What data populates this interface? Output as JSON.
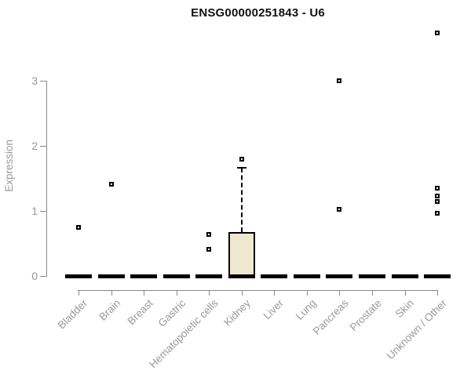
{
  "chart_data": {
    "type": "boxplot",
    "title": "ENSG00000251843 - U6",
    "ylabel": "Expression",
    "xlabel": "",
    "yticks": [
      0,
      1,
      2,
      3
    ],
    "ylim": [
      0,
      3.9
    ],
    "grid": false,
    "legend": null,
    "categories": [
      "Bladder",
      "Brain",
      "Breast",
      "Gastric",
      "Hematopoietic cells",
      "Kidney",
      "Liver",
      "Lung",
      "Pancreas",
      "Prostate",
      "Skin",
      "Unknown / Other"
    ],
    "series": [
      {
        "category": "Bladder",
        "whisker_low": 0,
        "q1": 0,
        "median": 0,
        "q3": 0,
        "whisker_high": 0,
        "outliers": [
          0.75
        ]
      },
      {
        "category": "Brain",
        "whisker_low": 0,
        "q1": 0,
        "median": 0,
        "q3": 0,
        "whisker_high": 0,
        "outliers": [
          1.41
        ]
      },
      {
        "category": "Breast",
        "whisker_low": 0,
        "q1": 0,
        "median": 0,
        "q3": 0,
        "whisker_high": 0,
        "outliers": []
      },
      {
        "category": "Gastric",
        "whisker_low": 0,
        "q1": 0,
        "median": 0,
        "q3": 0,
        "whisker_high": 0,
        "outliers": []
      },
      {
        "category": "Hematopoietic cells",
        "whisker_low": 0,
        "q1": 0,
        "median": 0,
        "q3": 0,
        "whisker_high": 0,
        "outliers": [
          0.64,
          0.41
        ]
      },
      {
        "category": "Kidney",
        "whisker_low": 0,
        "q1": 0,
        "median": 0,
        "q3": 0.67,
        "whisker_high": 1.66,
        "outliers": [
          1.8
        ]
      },
      {
        "category": "Liver",
        "whisker_low": 0,
        "q1": 0,
        "median": 0,
        "q3": 0,
        "whisker_high": 0,
        "outliers": []
      },
      {
        "category": "Lung",
        "whisker_low": 0,
        "q1": 0,
        "median": 0,
        "q3": 0,
        "whisker_high": 0,
        "outliers": []
      },
      {
        "category": "Pancreas",
        "whisker_low": 0,
        "q1": 0,
        "median": 0,
        "q3": 0,
        "whisker_high": 0,
        "outliers": [
          3.0,
          1.02
        ]
      },
      {
        "category": "Prostate",
        "whisker_low": 0,
        "q1": 0,
        "median": 0,
        "q3": 0,
        "whisker_high": 0,
        "outliers": []
      },
      {
        "category": "Skin",
        "whisker_low": 0,
        "q1": 0,
        "median": 0,
        "q3": 0,
        "whisker_high": 0,
        "outliers": []
      },
      {
        "category": "Unknown / Other",
        "whisker_low": 0,
        "q1": 0,
        "median": 0,
        "q3": 0,
        "whisker_high": 0,
        "outliers": [
          3.73,
          1.35,
          1.23,
          1.14,
          0.96
        ]
      }
    ],
    "colors": {
      "box_fill": "#EEE8D1",
      "box_stroke": "#000000",
      "median": "#000000",
      "outlier_stroke": "#000000",
      "axis": "#888888",
      "tick_label": "#999999",
      "title": "#111111"
    }
  }
}
